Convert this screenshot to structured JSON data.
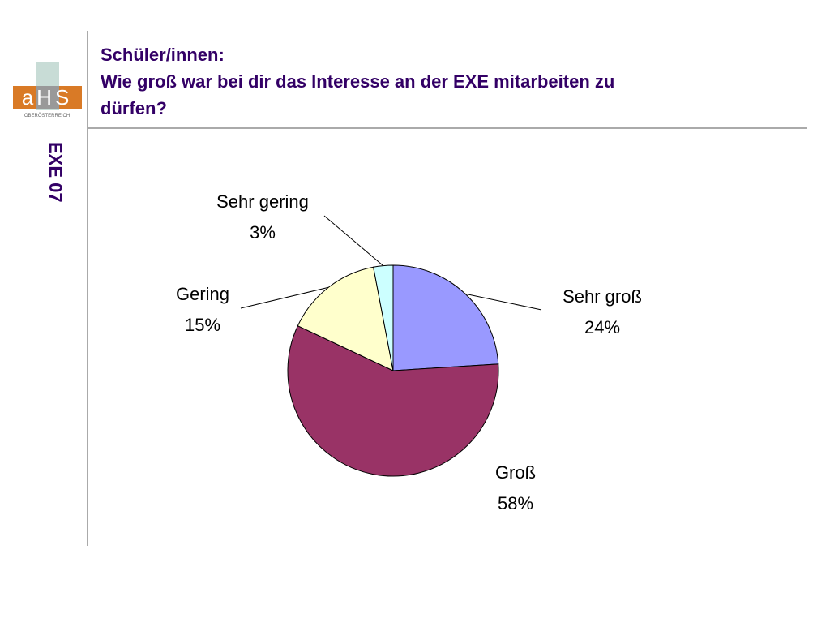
{
  "slide": {
    "title": [
      "Schüler/innen:",
      "Wie groß war bei dir das Interesse an der EXE mitarbeiten zu",
      "dürfen?"
    ],
    "side_label": "EXE 07",
    "logo": {
      "text": "aHS",
      "subtext": "OBERÖSTERREICH"
    }
  },
  "chart_data": {
    "type": "pie",
    "categories": [
      "Sehr groß",
      "Groß",
      "Gering",
      "Sehr gering"
    ],
    "values": [
      24,
      58,
      15,
      3
    ],
    "value_labels": [
      "24%",
      "58%",
      "15%",
      "3%"
    ],
    "colors": [
      "#9999ff",
      "#993366",
      "#ffffcc",
      "#ccffff"
    ]
  }
}
